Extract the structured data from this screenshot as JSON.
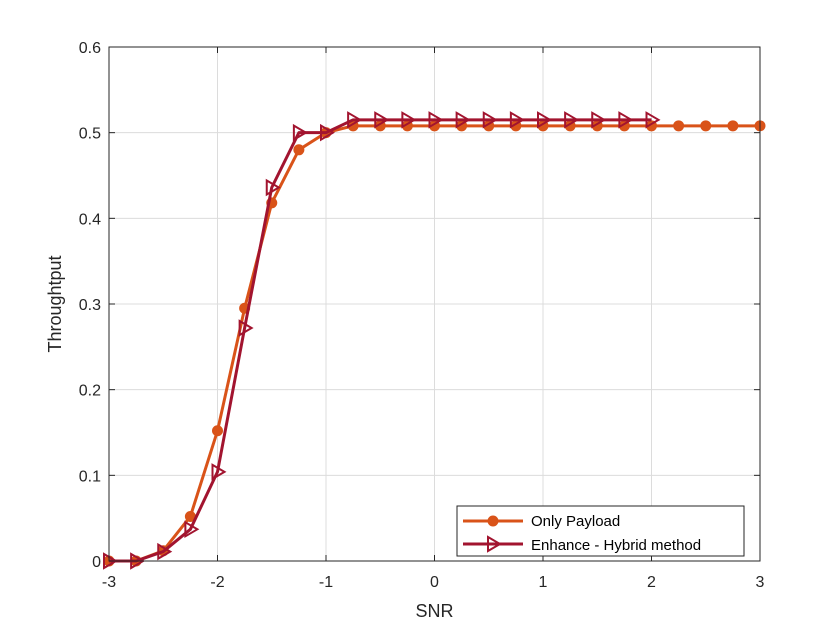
{
  "chart_data": {
    "type": "line",
    "title": "",
    "xlabel": "SNR",
    "ylabel": "Throughtput",
    "xlim": [
      -3,
      3
    ],
    "ylim": [
      0,
      0.6
    ],
    "xticks": [
      -3,
      -2,
      -1,
      0,
      1,
      2,
      3
    ],
    "xtick_labels": [
      "-3",
      "-2",
      "-1",
      "0",
      "1",
      "2",
      "3"
    ],
    "yticks": [
      0,
      0.1,
      0.2,
      0.3,
      0.4,
      0.5,
      0.6
    ],
    "ytick_labels": [
      "0",
      "0.1",
      "0.2",
      "0.3",
      "0.4",
      "0.5",
      "0.6"
    ],
    "grid": true,
    "legend_position": "bottom-right",
    "series": [
      {
        "name": "Only Payload",
        "color": "#D95319",
        "marker": "circle",
        "x": [
          -3,
          -2.75,
          -2.5,
          -2.25,
          -2,
          -1.75,
          -1.5,
          -1.25,
          -1,
          -0.75,
          -0.5,
          -0.25,
          0,
          0.25,
          0.5,
          0.75,
          1,
          1.25,
          1.5,
          1.75,
          2,
          2.25,
          2.5,
          2.75,
          3
        ],
        "y": [
          0,
          0,
          0.012,
          0.052,
          0.152,
          0.295,
          0.418,
          0.48,
          0.5,
          0.508,
          0.508,
          0.508,
          0.508,
          0.508,
          0.508,
          0.508,
          0.508,
          0.508,
          0.508,
          0.508,
          0.508,
          0.508,
          0.508,
          0.508,
          0.508
        ]
      },
      {
        "name": "Enhance - Hybrid method",
        "color": "#A2142F",
        "marker": "triangle-right",
        "x": [
          -3,
          -2.75,
          -2.5,
          -2.25,
          -2,
          -1.75,
          -1.5,
          -1.25,
          -1,
          -0.75,
          -0.5,
          -0.25,
          0,
          0.25,
          0.5,
          0.75,
          1,
          1.25,
          1.5,
          1.75,
          2
        ],
        "y": [
          0,
          0,
          0.011,
          0.037,
          0.104,
          0.272,
          0.436,
          0.5,
          0.5,
          0.515,
          0.515,
          0.515,
          0.515,
          0.515,
          0.515,
          0.515,
          0.515,
          0.515,
          0.515,
          0.515,
          0.515
        ]
      }
    ]
  }
}
